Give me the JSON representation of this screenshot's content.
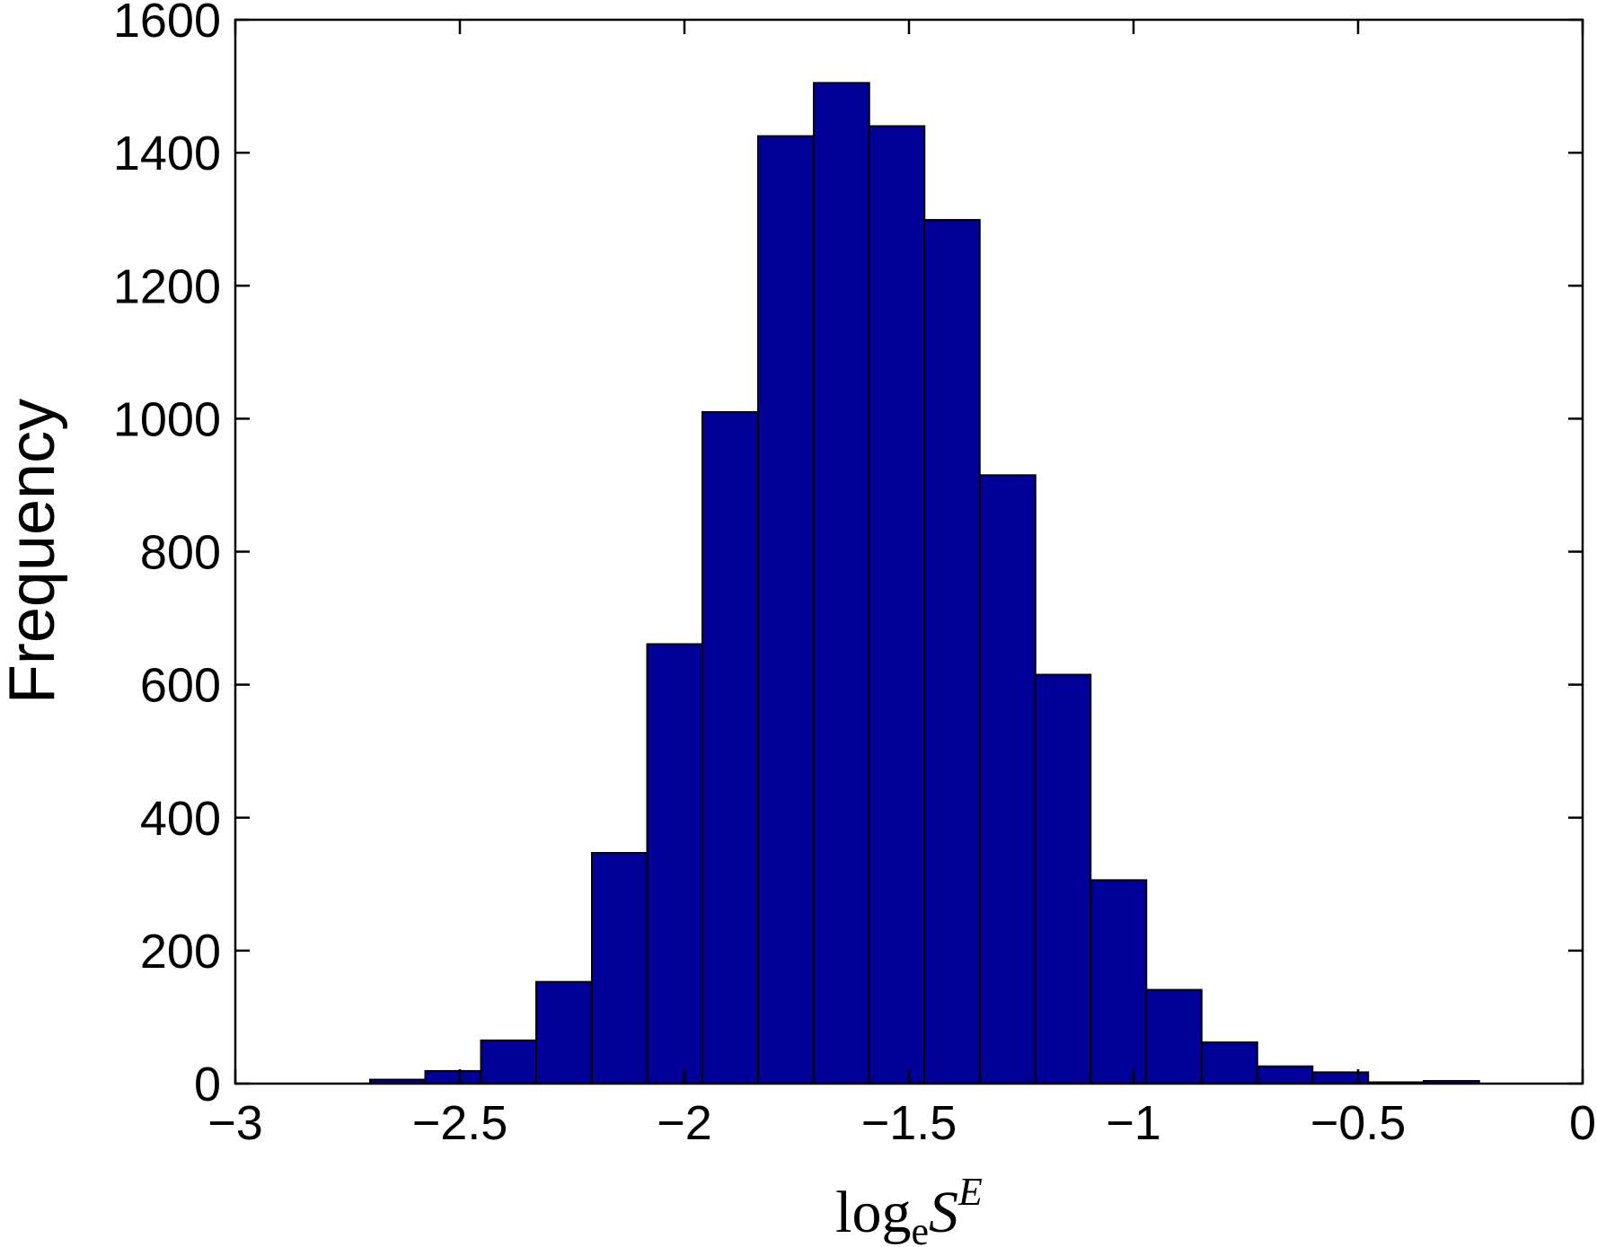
{
  "chart_data": {
    "type": "bar",
    "subtype": "histogram",
    "title": "",
    "xlabel": {
      "base": "log",
      "subscript": "e",
      "var": "S",
      "superscript": "E"
    },
    "ylabel": "Frequency",
    "xlim": [
      -3,
      0
    ],
    "ylim": [
      0,
      1600
    ],
    "xticks": [
      -3,
      -2.5,
      -2,
      -1.5,
      -1,
      -0.5,
      0
    ],
    "xtick_labels": [
      "−3",
      "−2.5",
      "−2",
      "−1.5",
      "−1",
      "−0.5",
      "0"
    ],
    "yticks": [
      0,
      200,
      400,
      600,
      800,
      1000,
      1200,
      1400,
      1600
    ],
    "ytick_labels": [
      "0",
      "200",
      "400",
      "600",
      "800",
      "1000",
      "1200",
      "1400",
      "1600"
    ],
    "grid": false,
    "bar_color": "#000099",
    "bin_width": 0.1235,
    "bins": [
      {
        "x0": -2.7,
        "value": 6
      },
      {
        "x0": -2.577,
        "value": 19
      },
      {
        "x0": -2.453,
        "value": 65
      },
      {
        "x0": -2.33,
        "value": 153
      },
      {
        "x0": -2.206,
        "value": 347
      },
      {
        "x0": -2.083,
        "value": 661
      },
      {
        "x0": -1.96,
        "value": 1010
      },
      {
        "x0": -1.836,
        "value": 1425
      },
      {
        "x0": -1.712,
        "value": 1505
      },
      {
        "x0": -1.589,
        "value": 1440
      },
      {
        "x0": -1.466,
        "value": 1299
      },
      {
        "x0": -1.342,
        "value": 915
      },
      {
        "x0": -1.219,
        "value": 615
      },
      {
        "x0": -1.095,
        "value": 306
      },
      {
        "x0": -0.972,
        "value": 141
      },
      {
        "x0": -0.848,
        "value": 62
      },
      {
        "x0": -0.725,
        "value": 26
      },
      {
        "x0": -0.601,
        "value": 17
      },
      {
        "x0": -0.478,
        "value": 2
      },
      {
        "x0": -0.354,
        "value": 4
      }
    ]
  }
}
